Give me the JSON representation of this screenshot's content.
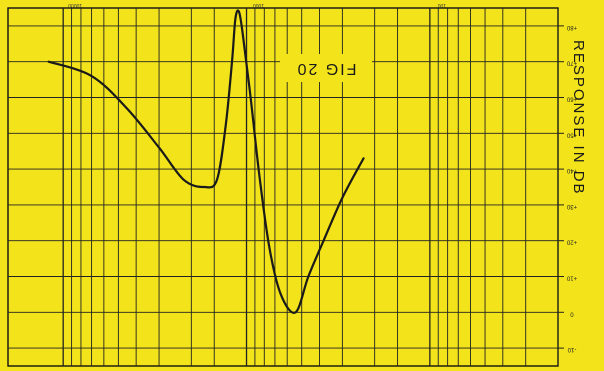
{
  "chart_data": {
    "type": "line",
    "orientation": "upside-down",
    "title": "FIG 20",
    "xlabel": "",
    "ylabel": "RESPONSE IN DB",
    "x_scale": "log",
    "x_ticks": [
      "10000",
      "1000",
      "100"
    ],
    "x_minor_ticks": [
      10000,
      9000,
      8000,
      7000,
      6000,
      5000,
      4000,
      3000,
      2000,
      1500,
      1000,
      900,
      800,
      700,
      600,
      500,
      400,
      300,
      200,
      150,
      100,
      90,
      80,
      70,
      60,
      50,
      40,
      30,
      20
    ],
    "xlim": [
      20,
      20000
    ],
    "y_ticks": [
      -10,
      0,
      10,
      20,
      30,
      40,
      50,
      60,
      70,
      80
    ],
    "y_tick_labels": [
      "-10",
      "0",
      "+10",
      "+20",
      "+30",
      "+40",
      "+50",
      "+60",
      "+70",
      "+80"
    ],
    "ylim": [
      -15,
      85
    ],
    "grid": true,
    "series": [
      {
        "x": [
          12000,
          7000,
          4500,
          3000,
          2200,
          1700,
          1450,
          1300,
          1200,
          1150,
          1100,
          1050,
          950,
          850,
          750,
          650,
          540,
          460,
          380,
          300,
          230
        ],
        "y": [
          70,
          66,
          57,
          46,
          37,
          35,
          37,
          52,
          70,
          82,
          84,
          78,
          60,
          38,
          18,
          5,
          0,
          10,
          20,
          32,
          43
        ]
      }
    ]
  },
  "y_axis": {
    "label": "RESPONSE IN DB"
  }
}
